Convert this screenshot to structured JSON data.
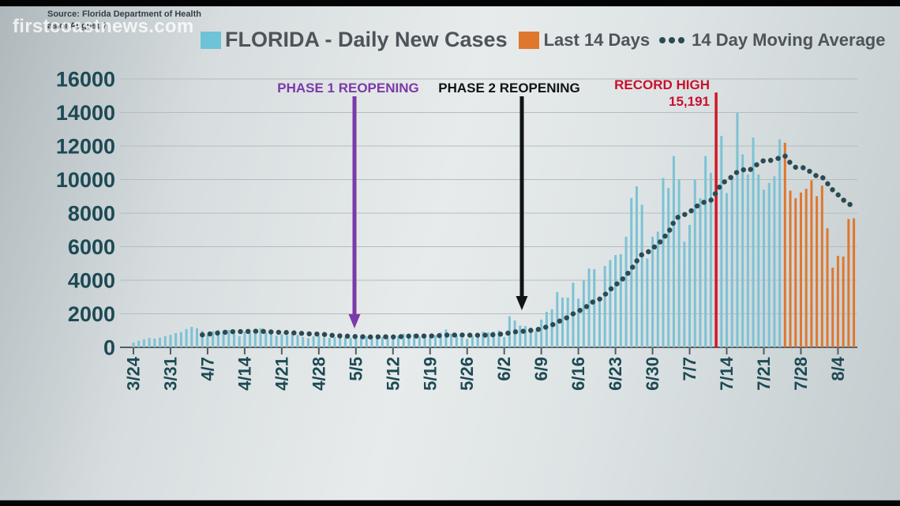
{
  "watermark": "firstcoastnews.com",
  "source": {
    "line1": "Source: Florida Department of Health",
    "line2": "as of August 7"
  },
  "legend": {
    "title": "FLORIDA - Daily New Cases",
    "last14_label": "Last 14 Days",
    "ma_label": "14 Day Moving Average"
  },
  "annotations": {
    "phase1": "PHASE 1 REOPENING",
    "phase2": "PHASE 2 REOPENING",
    "record_label": "RECORD HIGH",
    "record_value": "15,191"
  },
  "colors": {
    "daily_bar": "#7cc2d5",
    "last14_bar": "#df772f",
    "record_line": "#d01826",
    "moving_average": "#2b4a53",
    "axis_text": "#1d4a54",
    "grid": "#b6bcbe",
    "axis_line": "#565c60",
    "phase1_purple": "#7b39a9",
    "phase2_black": "#121316",
    "record_red": "#c8102e"
  },
  "chart_data": {
    "type": "bar",
    "title": "FLORIDA - Daily New Cases",
    "ylabel": "",
    "xlabel": "",
    "ylim": [
      0,
      16000
    ],
    "yticks": [
      0,
      2000,
      4000,
      6000,
      8000,
      10000,
      12000,
      14000,
      16000
    ],
    "grid": true,
    "legend_position": "top",
    "xtick_labels": [
      "3/24",
      "3/31",
      "4/7",
      "4/14",
      "4/21",
      "4/28",
      "5/5",
      "5/12",
      "5/19",
      "5/26",
      "6/2",
      "6/9",
      "6/16",
      "6/23",
      "6/30",
      "7/7",
      "7/14",
      "7/21",
      "7/28",
      "8/4"
    ],
    "xtick_every_days": 7,
    "moving_average_window": 14,
    "last14_count": 14,
    "record_index": 110,
    "record": {
      "date": "7/12",
      "value": 15191,
      "label": "RECORD HIGH"
    },
    "dates": [
      "3/24",
      "3/25",
      "3/26",
      "3/27",
      "3/28",
      "3/29",
      "3/30",
      "3/31",
      "4/1",
      "4/2",
      "4/3",
      "4/4",
      "4/5",
      "4/6",
      "4/7",
      "4/8",
      "4/9",
      "4/10",
      "4/11",
      "4/12",
      "4/13",
      "4/14",
      "4/15",
      "4/16",
      "4/17",
      "4/18",
      "4/19",
      "4/20",
      "4/21",
      "4/22",
      "4/23",
      "4/24",
      "4/25",
      "4/26",
      "4/27",
      "4/28",
      "4/29",
      "4/30",
      "5/1",
      "5/2",
      "5/3",
      "5/4",
      "5/5",
      "5/6",
      "5/7",
      "5/8",
      "5/9",
      "5/10",
      "5/11",
      "5/12",
      "5/13",
      "5/14",
      "5/15",
      "5/16",
      "5/17",
      "5/18",
      "5/19",
      "5/20",
      "5/21",
      "5/22",
      "5/23",
      "5/24",
      "5/25",
      "5/26",
      "5/27",
      "5/28",
      "5/29",
      "5/30",
      "5/31",
      "6/1",
      "6/2",
      "6/3",
      "6/4",
      "6/5",
      "6/6",
      "6/7",
      "6/8",
      "6/9",
      "6/10",
      "6/11",
      "6/12",
      "6/13",
      "6/14",
      "6/15",
      "6/16",
      "6/17",
      "6/18",
      "6/19",
      "6/20",
      "6/21",
      "6/22",
      "6/23",
      "6/24",
      "6/25",
      "6/26",
      "6/27",
      "6/28",
      "6/29",
      "6/30",
      "7/1",
      "7/2",
      "7/3",
      "7/4",
      "7/5",
      "7/6",
      "7/7",
      "7/8",
      "7/9",
      "7/10",
      "7/11",
      "7/12",
      "7/13",
      "7/14",
      "7/15",
      "7/16",
      "7/17",
      "7/18",
      "7/19",
      "7/20",
      "7/21",
      "7/22",
      "7/23",
      "7/24",
      "7/25",
      "7/26",
      "7/27",
      "7/28",
      "7/29",
      "7/30",
      "7/31",
      "8/1",
      "8/2",
      "8/3",
      "8/4",
      "8/5",
      "8/6",
      "8/7"
    ],
    "values": [
      280,
      390,
      480,
      560,
      520,
      580,
      670,
      740,
      850,
      910,
      1090,
      1220,
      1140,
      990,
      750,
      960,
      1030,
      940,
      1040,
      800,
      660,
      940,
      850,
      1060,
      1140,
      890,
      780,
      700,
      780,
      700,
      850,
      740,
      620,
      550,
      660,
      700,
      600,
      560,
      620,
      680,
      600,
      560,
      540,
      590,
      650,
      700,
      760,
      620,
      580,
      660,
      700,
      810,
      830,
      790,
      640,
      540,
      600,
      720,
      880,
      1060,
      810,
      690,
      560,
      510,
      680,
      740,
      930,
      890,
      940,
      1000,
      620,
      1850,
      1600,
      1300,
      1270,
      1180,
      970,
      1650,
      2120,
      2270,
      3290,
      2970,
      2970,
      3850,
      2900,
      4000,
      4700,
      4660,
      2750,
      4850,
      5200,
      5500,
      5560,
      6600,
      8900,
      9600,
      8500,
      5300,
      6600,
      6900,
      10100,
      9500,
      11400,
      10000,
      6300,
      7300,
      10000,
      8900,
      11400,
      10400,
      15191,
      12600,
      9200,
      10200,
      13970,
      11500,
      10300,
      12500,
      10300,
      9400,
      9800,
      10200,
      12400,
      12200,
      9340,
      8890,
      9230,
      9450,
      9960,
      9010,
      9640,
      7100,
      4750,
      5450,
      5410,
      7650,
      7690
    ]
  }
}
